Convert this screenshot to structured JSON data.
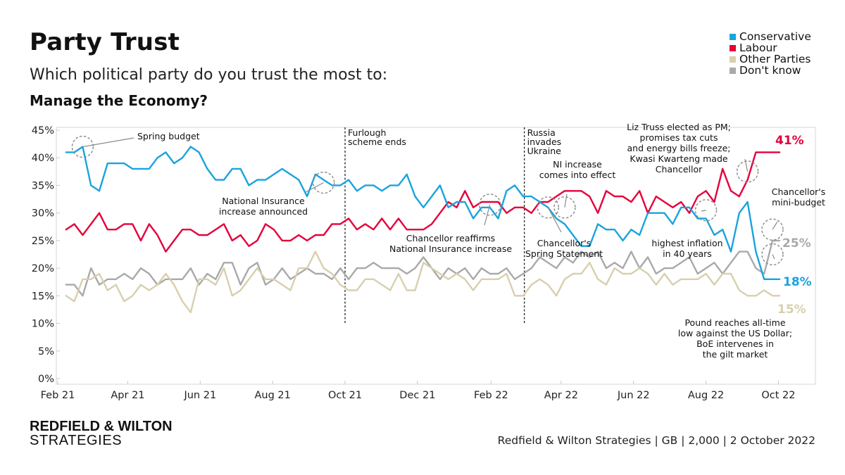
{
  "header": {
    "title": "Party Trust",
    "subtitle": "Which political party do you trust the most to:",
    "question": "Manage the Economy?"
  },
  "footer": {
    "brand_top": "REDFIELD & WILTON",
    "brand_bottom": "STRATEGIES",
    "source": "Redfield & Wilton Strategies | GB | 2,000 | 2 October 2022"
  },
  "chart_data": {
    "type": "line",
    "ylim": [
      0,
      45
    ],
    "y_ticks": [
      "0%",
      "5%",
      "10%",
      "15%",
      "20%",
      "25%",
      "30%",
      "35%",
      "40%",
      "45%"
    ],
    "x_range": [
      "2021-02-01",
      "2022-10-31"
    ],
    "x_ticks": [
      {
        "label": "Feb 21",
        "date": "2021-02-01"
      },
      {
        "label": "Apr 21",
        "date": "2021-04-01"
      },
      {
        "label": "Jun 21",
        "date": "2021-06-01"
      },
      {
        "label": "Aug 21",
        "date": "2021-08-01"
      },
      {
        "label": "Oct 21",
        "date": "2021-10-01"
      },
      {
        "label": "Dec 21",
        "date": "2021-12-01"
      },
      {
        "label": "Feb 22",
        "date": "2022-02-01"
      },
      {
        "label": "Apr 22",
        "date": "2022-04-01"
      },
      {
        "label": "Jun 22",
        "date": "2022-06-01"
      },
      {
        "label": "Aug 22",
        "date": "2022-08-01"
      },
      {
        "label": "Oct 22",
        "date": "2022-10-01"
      }
    ],
    "grid": false,
    "legend_position": "top-right",
    "dates": [
      "2021-02-08",
      "2021-02-15",
      "2021-02-22",
      "2021-03-01",
      "2021-03-08",
      "2021-03-15",
      "2021-03-22",
      "2021-03-29",
      "2021-04-05",
      "2021-04-12",
      "2021-04-19",
      "2021-04-26",
      "2021-05-03",
      "2021-05-10",
      "2021-05-17",
      "2021-05-24",
      "2021-05-31",
      "2021-06-07",
      "2021-06-14",
      "2021-06-21",
      "2021-06-28",
      "2021-07-05",
      "2021-07-12",
      "2021-07-19",
      "2021-07-26",
      "2021-08-02",
      "2021-08-09",
      "2021-08-16",
      "2021-08-23",
      "2021-08-30",
      "2021-09-06",
      "2021-09-13",
      "2021-09-20",
      "2021-09-27",
      "2021-10-04",
      "2021-10-11",
      "2021-10-18",
      "2021-10-25",
      "2021-11-01",
      "2021-11-08",
      "2021-11-15",
      "2021-11-22",
      "2021-11-29",
      "2021-12-06",
      "2021-12-13",
      "2021-12-20",
      "2021-12-27",
      "2022-01-03",
      "2022-01-10",
      "2022-01-17",
      "2022-01-24",
      "2022-01-31",
      "2022-02-07",
      "2022-02-14",
      "2022-02-21",
      "2022-02-28",
      "2022-03-07",
      "2022-03-14",
      "2022-03-21",
      "2022-03-28",
      "2022-04-04",
      "2022-04-11",
      "2022-04-18",
      "2022-04-25",
      "2022-05-02",
      "2022-05-09",
      "2022-05-16",
      "2022-05-23",
      "2022-05-30",
      "2022-06-06",
      "2022-06-13",
      "2022-06-20",
      "2022-06-27",
      "2022-07-04",
      "2022-07-11",
      "2022-07-18",
      "2022-07-25",
      "2022-08-01",
      "2022-08-08",
      "2022-08-15",
      "2022-08-22",
      "2022-08-29",
      "2022-09-05",
      "2022-09-12",
      "2022-09-19",
      "2022-09-26",
      "2022-10-02"
    ],
    "series": [
      {
        "name": "Conservative",
        "color": "#1aa3de",
        "values": [
          41,
          41,
          42,
          35,
          34,
          39,
          39,
          39,
          38,
          38,
          38,
          40,
          41,
          39,
          40,
          42,
          41,
          38,
          36,
          36,
          38,
          38,
          35,
          36,
          36,
          37,
          38,
          37,
          36,
          33,
          37,
          36,
          35,
          35,
          36,
          34,
          35,
          35,
          34,
          35,
          35,
          37,
          33,
          31,
          33,
          35,
          31,
          32,
          32,
          29,
          31,
          31,
          29,
          34,
          35,
          33,
          33,
          32,
          31,
          29,
          28,
          26,
          24,
          24,
          28,
          27,
          27,
          25,
          27,
          26,
          30,
          30,
          30,
          28,
          31,
          31,
          29,
          29,
          26,
          27,
          23,
          30,
          32,
          23,
          18,
          18,
          18
        ]
      },
      {
        "name": "Labour",
        "color": "#e4003b",
        "values": [
          27,
          28,
          26,
          28,
          30,
          27,
          27,
          28,
          28,
          25,
          28,
          26,
          23,
          25,
          27,
          27,
          26,
          26,
          27,
          28,
          25,
          26,
          24,
          25,
          28,
          27,
          25,
          25,
          26,
          25,
          26,
          26,
          28,
          28,
          29,
          27,
          28,
          27,
          29,
          27,
          29,
          27,
          27,
          27,
          28,
          30,
          32,
          31,
          34,
          31,
          32,
          32,
          32,
          30,
          31,
          31,
          30,
          32,
          32,
          33,
          34,
          34,
          34,
          33,
          30,
          34,
          33,
          33,
          32,
          34,
          30,
          33,
          32,
          31,
          32,
          30,
          33,
          34,
          32,
          38,
          34,
          33,
          36,
          41,
          41,
          41,
          41
        ]
      },
      {
        "name": "Other Parties",
        "color": "#d8cfae",
        "values": [
          15,
          14,
          18,
          18,
          19,
          16,
          17,
          14,
          15,
          17,
          16,
          17,
          19,
          17,
          14,
          12,
          18,
          18,
          17,
          20,
          15,
          16,
          18,
          20,
          18,
          18,
          17,
          16,
          20,
          20,
          23,
          20,
          19,
          17,
          16,
          16,
          18,
          18,
          17,
          16,
          19,
          16,
          16,
          21,
          20,
          19,
          18,
          19,
          18,
          16,
          18,
          18,
          18,
          19,
          15,
          15,
          17,
          18,
          17,
          15,
          18,
          19,
          19,
          21,
          18,
          17,
          20,
          19,
          19,
          20,
          19,
          17,
          19,
          17,
          18,
          18,
          18,
          19,
          17,
          19,
          19,
          16,
          15,
          15,
          16,
          15,
          15
        ]
      },
      {
        "name": "Don't know",
        "color": "#a9a9a9",
        "values": [
          17,
          17,
          15,
          20,
          17,
          18,
          18,
          19,
          18,
          20,
          19,
          17,
          18,
          18,
          18,
          20,
          17,
          19,
          18,
          21,
          21,
          17,
          20,
          21,
          17,
          18,
          20,
          18,
          19,
          20,
          19,
          19,
          18,
          20,
          18,
          20,
          20,
          21,
          20,
          20,
          20,
          19,
          20,
          22,
          20,
          18,
          20,
          19,
          20,
          18,
          20,
          19,
          19,
          20,
          18,
          19,
          20,
          22,
          21,
          20,
          22,
          21,
          23,
          22,
          23,
          20,
          21,
          20,
          23,
          20,
          22,
          19,
          20,
          20,
          21,
          22,
          19,
          20,
          21,
          19,
          21,
          23,
          23,
          20,
          19,
          25,
          25
        ]
      }
    ],
    "end_labels": [
      {
        "series": "Labour",
        "text": "41%",
        "value": 41
      },
      {
        "series": "Don't know",
        "text": "25%",
        "value": 25
      },
      {
        "series": "Conservative",
        "text": "18%",
        "value": 18
      },
      {
        "series": "Other Parties",
        "text": "15%",
        "value": 15
      }
    ],
    "event_lines": [
      {
        "date": "2021-10-01",
        "lines": [
          "Furlough",
          "scheme ends"
        ]
      },
      {
        "date": "2022-03-01",
        "lines": [
          "Russia",
          "invades",
          "Ukraine"
        ]
      }
    ],
    "annotations": [
      {
        "date": "2021-02-22",
        "value": 42,
        "lines": [
          "Spring budget"
        ]
      },
      {
        "date": "2021-09-13",
        "value": 35.5,
        "lines": [
          "National Insurance",
          "increase announced"
        ]
      },
      {
        "date": "2022-01-31",
        "value": 31.5,
        "lines": [
          "Chancellor reaffirms",
          "National Insurance increase"
        ]
      },
      {
        "date": "2022-03-21",
        "value": 31,
        "lines": [
          "Chancellor's",
          "Spring Statement"
        ]
      },
      {
        "date": "2022-04-04",
        "value": 31,
        "lines": [
          "NI increase",
          "comes into effect"
        ]
      },
      {
        "date": "2022-08-01",
        "value": 30.5,
        "lines": [
          "highest inflation",
          "in 40 years"
        ]
      },
      {
        "date": "2022-09-05",
        "value": 37.5,
        "lines": [
          "Liz Truss elected as PM;",
          "promises tax cuts",
          "and energy bills freeze;",
          "Kwasi Kwarteng made",
          "Chancellor"
        ]
      },
      {
        "date": "2022-09-26",
        "value": 27,
        "lines": [
          "Chancellor's",
          "mini-budget"
        ]
      },
      {
        "date": "2022-09-26",
        "value": 22.5,
        "lines": [
          "Pound reaches all-time",
          "low against the US Dollar;",
          "BoE intervenes in",
          "the gilt market"
        ]
      }
    ]
  }
}
